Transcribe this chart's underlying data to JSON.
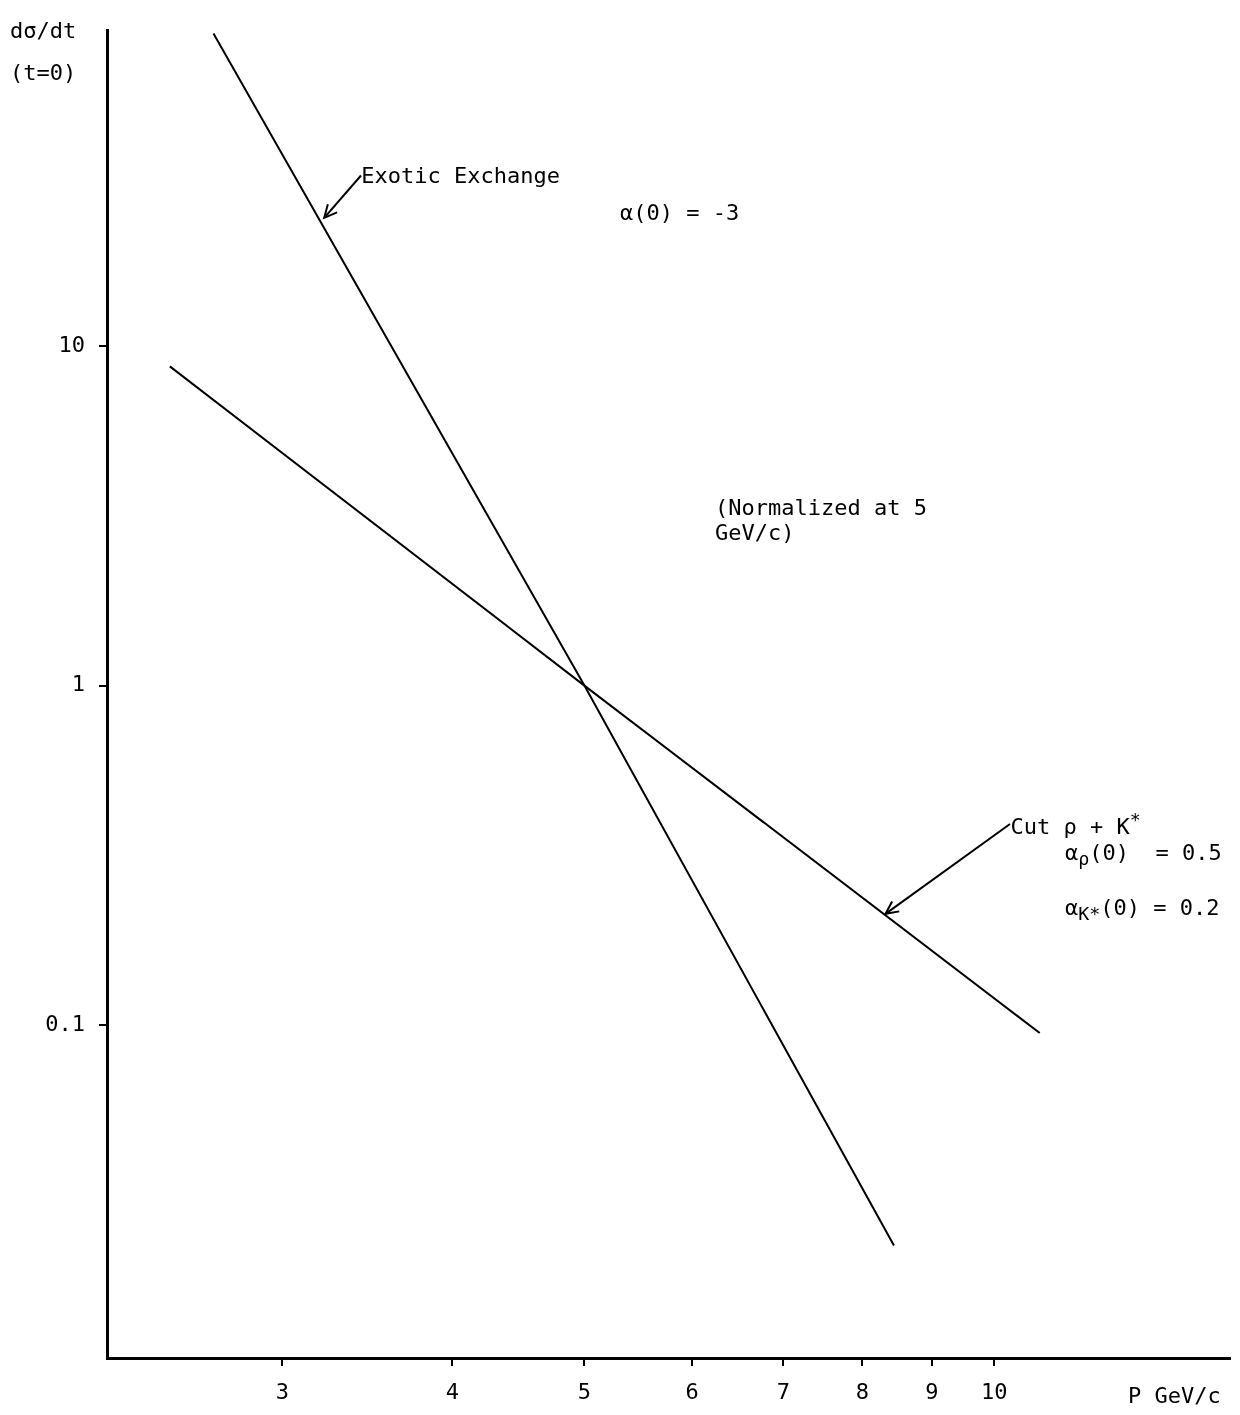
{
  "chart_data": {
    "type": "line",
    "xlabel": "P GeV/c",
    "ylabel": "dσ/dt (t=0)",
    "log": "xy",
    "grid": false,
    "legend": false,
    "marker": "none",
    "line_style": "solid",
    "xlim": [
      2.23,
      14.9
    ],
    "xticks": [
      3,
      4,
      5,
      6,
      7,
      8,
      9,
      10
    ],
    "ylim": [
      0.0105,
      85
    ],
    "yticks": [
      0.1,
      1,
      10
    ],
    "series": [
      {
        "color": "#000000",
        "x": [
          2.67,
          5,
          8.44
        ],
        "values": [
          83,
          1,
          0.0225
        ]
      },
      {
        "color": "#000000",
        "x": [
          2.48,
          5,
          10.8
        ],
        "values": [
          8.7,
          1,
          0.095
        ]
      }
    ],
    "annotations": [
      {
        "text": "Exotic Exchange",
        "x": 3.22,
        "y": 23.8
      },
      "α(0) = -3",
      "(Normalized at 5 GeV/c)",
      {
        "text": "Cut ρ + K$^{*}$",
        "x": 8.32,
        "y": 0.213
      },
      "α$_{ρ}$(0)  = 0.5",
      "α$_{K*}$(0) = 0.2"
    ]
  }
}
